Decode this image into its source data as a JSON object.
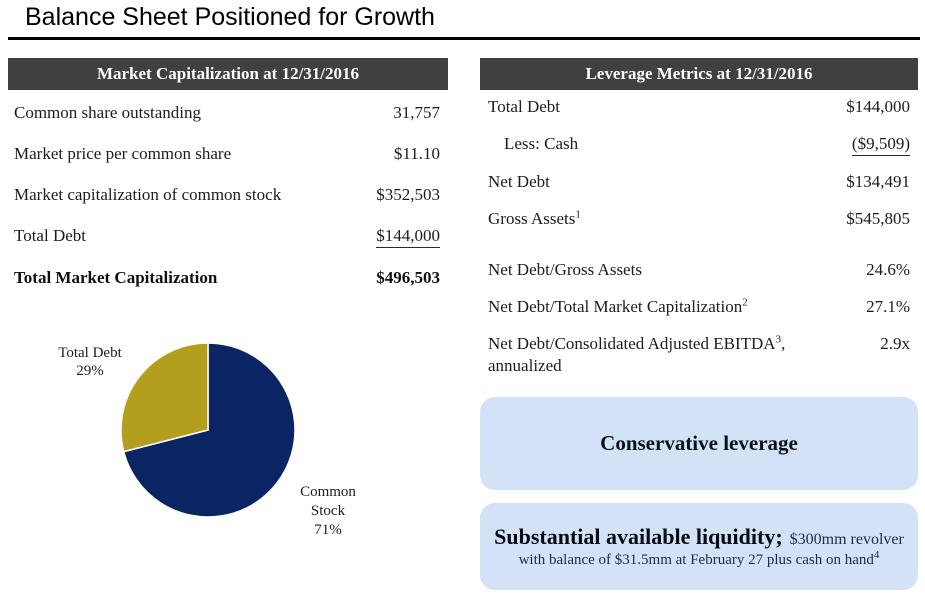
{
  "title": "Balance Sheet Positioned for Growth",
  "market_cap": {
    "header": "Market Capitalization at 12/31/2016",
    "rows": [
      {
        "label": "Common share outstanding",
        "value": "31,757"
      },
      {
        "label": "Market price per common share",
        "value": "$11.10"
      },
      {
        "label": "Market capitalization of common stock",
        "value": "$352,503"
      },
      {
        "label": "Total Debt",
        "value": "$144,000"
      },
      {
        "label": "Total Market Capitalization",
        "value": "$496,503"
      }
    ]
  },
  "leverage": {
    "header": "Leverage Metrics at 12/31/2016",
    "rows_top": [
      {
        "label": "Total Debt",
        "value": "$144,000"
      },
      {
        "label": "Less: Cash",
        "value": "($9,509)"
      },
      {
        "label": "Net Debt",
        "value": "$134,491"
      },
      {
        "label": "Gross Assets",
        "sup": "1",
        "value": "$545,805"
      }
    ],
    "rows_bottom": [
      {
        "label": "Net Debt/Gross Assets",
        "value": "24.6%"
      },
      {
        "label": "Net Debt/Total Market Capitalization",
        "sup": "2",
        "value": "27.1%"
      },
      {
        "label": "Net Debt/Consolidated Adjusted EBITDA",
        "sup": "3",
        "label_tail": ", annualized",
        "value": "2.9x"
      }
    ]
  },
  "chart_data": {
    "type": "pie",
    "title": "Total Market Capitalization composition",
    "start_angle_deg": 0,
    "direction": "clockwise",
    "slices": [
      {
        "label": "Common Stock",
        "value": 71,
        "display": "71%",
        "color": "#0b2463"
      },
      {
        "label": "Total Debt",
        "value": 29,
        "display": "29%",
        "color": "#b49e1d"
      }
    ],
    "labels": {
      "total_debt": {
        "line1": "Total Debt",
        "line2": "29%"
      },
      "common_stock": {
        "line1": "Common",
        "line2": "Stock",
        "line3": "71%"
      }
    }
  },
  "callouts": {
    "conservative": {
      "text": "Conservative leverage"
    },
    "liquidity": {
      "lead": "Substantial available liquidity;",
      "inline": "$300mm revolver",
      "line2": "with balance of $31.5mm at February 27 plus cash on hand",
      "sup": "4"
    }
  },
  "colors": {
    "header_bar_bg": "#404040",
    "header_bar_text": "#fbfbfb",
    "pie_navy": "#0b2463",
    "pie_gold": "#b49e1d",
    "callout_bg": "#d4e2f8",
    "title_rule": "#000000"
  }
}
